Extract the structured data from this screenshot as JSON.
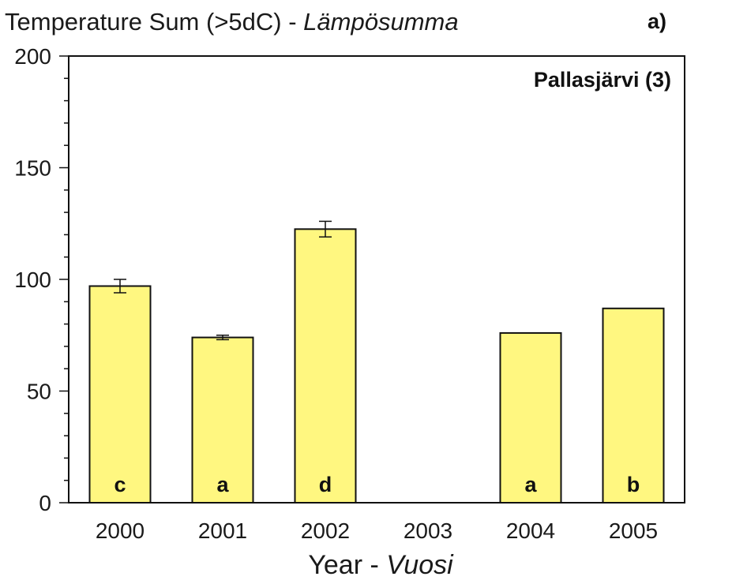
{
  "chart_data": {
    "type": "bar",
    "title": "Temperature Sum (>5dC) - ",
    "title_italic": "Lämpösumma",
    "panel_label": "a)",
    "annotation": "Pallasjärvi (3)",
    "xlabel": "Year - ",
    "xlabel_italic": "Vuosi",
    "ylabel": "",
    "ylim": [
      0,
      200
    ],
    "yticks": [
      0,
      50,
      100,
      150,
      200
    ],
    "categories": [
      "2000",
      "2001",
      "2002",
      "2003",
      "2004",
      "2005"
    ],
    "values": [
      97,
      74,
      122.5,
      null,
      76,
      87
    ],
    "errors": [
      3,
      1,
      3.5,
      null,
      0,
      0
    ],
    "letters": [
      "c",
      "a",
      "d",
      "",
      "a",
      "b"
    ],
    "bar_color": "#fff780",
    "grid": false
  }
}
